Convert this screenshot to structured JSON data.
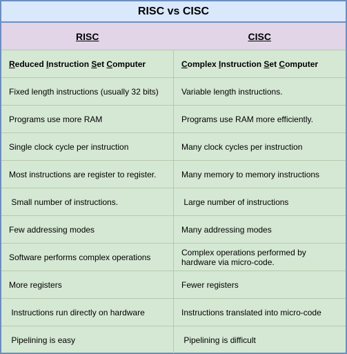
{
  "title": "RISC vs CISC",
  "headers": {
    "left": "RISC",
    "right": "CISC"
  },
  "definition": {
    "left": {
      "r": "R",
      "r_rest": "educed ",
      "i": "I",
      "i_rest": "nstruction ",
      "s": "S",
      "s_rest": "et ",
      "c": "C",
      "c_rest": "omputer"
    },
    "right": {
      "c1": "C",
      "c1_rest": "omplex ",
      "i": "I",
      "i_rest": "nstruction ",
      "s": "S",
      "s_rest": "et ",
      "c2": "C",
      "c2_rest": "omputer"
    }
  },
  "rows": [
    {
      "left": "Fixed length instructions (usually 32 bits)",
      "right": "Variable length instructions."
    },
    {
      "left": "Programs use more RAM",
      "right": "Programs use RAM more efficiently."
    },
    {
      "left": "Single clock cycle per instruction",
      "right": "Many clock cycles per instruction"
    },
    {
      "left": "Most instructions are register to register.",
      "right": "Many memory to memory instructions"
    },
    {
      "left": " Small number of instructions.",
      "right": " Large number of instructions"
    },
    {
      "left": "Few addressing modes",
      "right": "Many addressing modes"
    },
    {
      "left": "Software performs complex operations",
      "right": "Complex operations performed by hardware via micro-code."
    },
    {
      "left": "More registers",
      "right": "Fewer registers"
    },
    {
      "left": " Instructions run directly on hardware",
      "right": "Instructions translated into micro-code"
    },
    {
      "left": " Pipelining is easy",
      "right": " Pipelining is difficult"
    }
  ],
  "colors": {
    "border": "#6c8ebf",
    "title_bg": "#dae8fc",
    "header_bg": "#e1d5e7",
    "body_bg": "#d5e8d4"
  }
}
